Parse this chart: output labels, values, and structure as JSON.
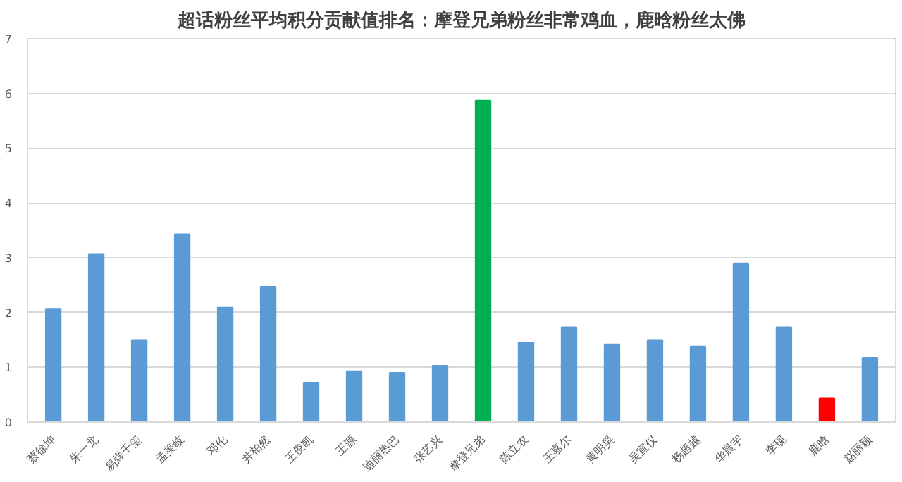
{
  "chart_data": {
    "type": "bar",
    "title": "超话粉丝平均积分贡献值排名：摩登兄弟粉丝非常鸡血，鹿晗粉丝太佛",
    "categories": [
      "蔡徐坤",
      "朱一龙",
      "易烊千玺",
      "孟美岐",
      "邓伦",
      "井柏然",
      "王俊凯",
      "王源",
      "迪丽热巴",
      "张艺兴",
      "摩登兄弟",
      "陈立农",
      "王嘉尔",
      "黄明昊",
      "吴宣仪",
      "杨超越",
      "华晨宇",
      "李现",
      "鹿晗",
      "赵丽颖"
    ],
    "values": [
      2.07,
      3.07,
      1.5,
      3.43,
      2.1,
      2.47,
      0.72,
      0.93,
      0.9,
      1.03,
      5.87,
      1.45,
      1.73,
      1.42,
      1.5,
      1.38,
      2.9,
      1.73,
      0.43,
      1.17
    ],
    "colors": [
      "#5b9bd5",
      "#5b9bd5",
      "#5b9bd5",
      "#5b9bd5",
      "#5b9bd5",
      "#5b9bd5",
      "#5b9bd5",
      "#5b9bd5",
      "#5b9bd5",
      "#5b9bd5",
      "#00b050",
      "#5b9bd5",
      "#5b9bd5",
      "#5b9bd5",
      "#5b9bd5",
      "#5b9bd5",
      "#5b9bd5",
      "#5b9bd5",
      "#ff0000",
      "#5b9bd5"
    ],
    "ylim": [
      0,
      7
    ],
    "yticks": [
      0,
      1,
      2,
      3,
      4,
      5,
      6,
      7
    ],
    "grid": "y"
  }
}
